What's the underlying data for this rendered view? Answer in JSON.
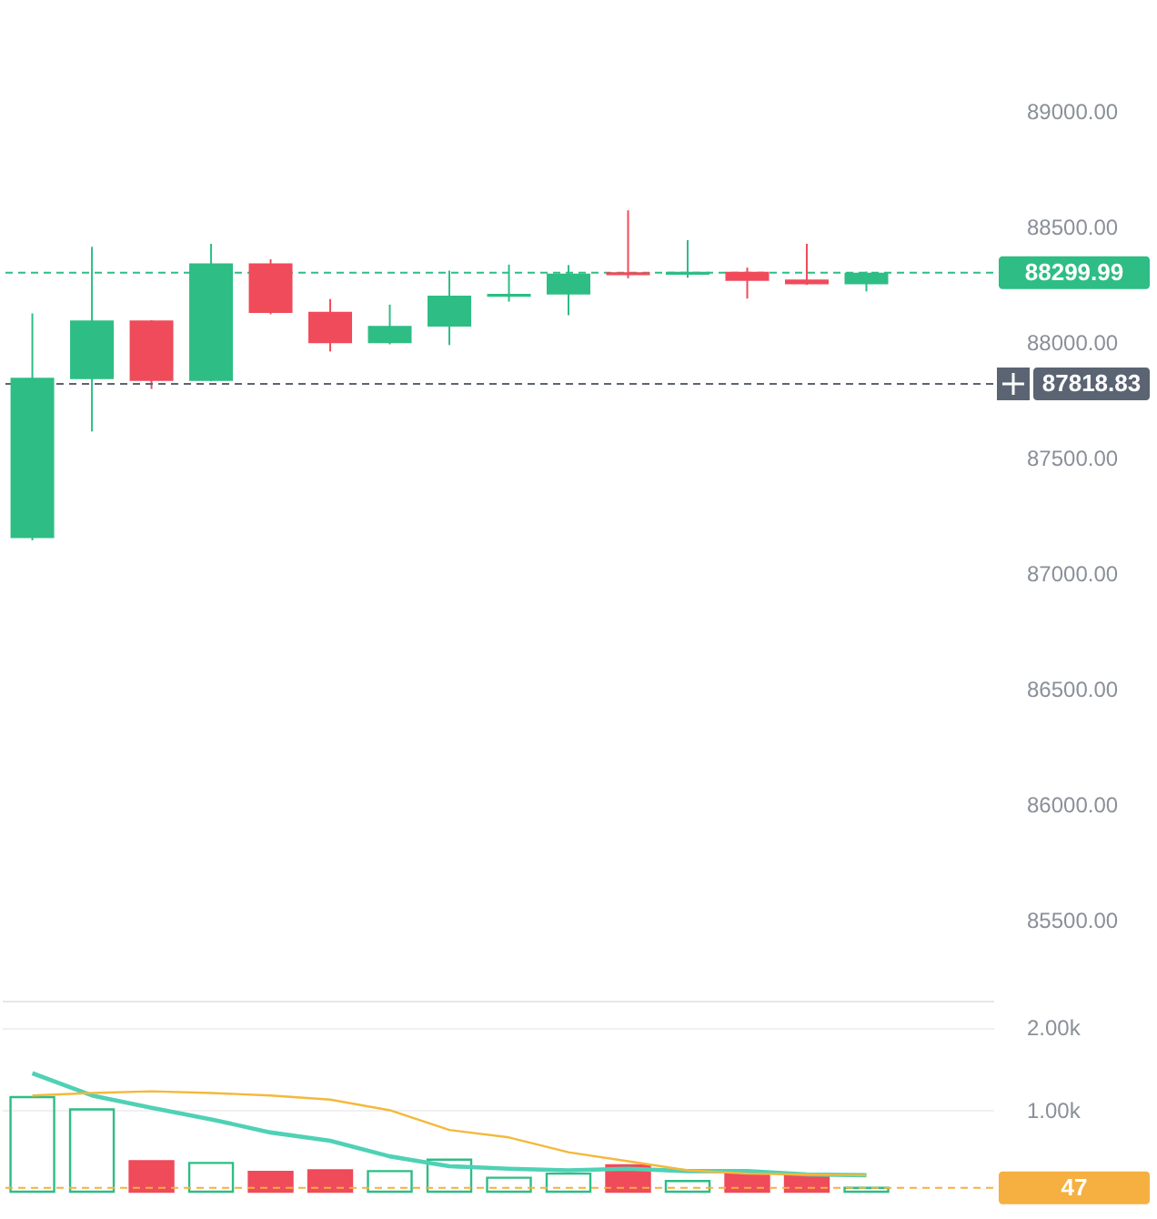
{
  "chart_data": [
    {
      "type": "candlestick",
      "categories": [
        null,
        null,
        null,
        null,
        null,
        null,
        null,
        null,
        null,
        null,
        null,
        null,
        null,
        null,
        null
      ],
      "ohlc": [
        [
          87152,
          88124,
          87142,
          87845
        ],
        [
          87840,
          88412,
          87613,
          88093
        ],
        [
          88093,
          88095,
          87797,
          87832
        ],
        [
          87832,
          88425,
          87830,
          88340
        ],
        [
          88340,
          88358,
          88120,
          88126
        ],
        [
          88131,
          88186,
          87959,
          87995
        ],
        [
          87995,
          88162,
          87990,
          88070
        ],
        [
          88067,
          88309,
          87987,
          88201
        ],
        [
          88196,
          88335,
          88175,
          88209
        ],
        [
          88206,
          88333,
          88116,
          88296
        ],
        [
          88302,
          88570,
          88276,
          88289
        ],
        [
          88291,
          88441,
          88278,
          88304
        ],
        [
          88304,
          88322,
          88188,
          88265
        ],
        [
          88271,
          88425,
          88248,
          88250
        ],
        [
          88250,
          88305,
          88219,
          88300
        ]
      ],
      "colors": [
        "#2ebd85",
        "#2ebd85",
        "#ef4b5a",
        "#2ebd85",
        "#ef4b5a",
        "#ef4b5a",
        "#2ebd85",
        "#2ebd85",
        "#2ebd85",
        "#2ebd85",
        "#ef4b5a",
        "#2ebd85",
        "#ef4b5a",
        "#ef4b5a",
        "#2ebd85"
      ],
      "ylim": [
        85150,
        89480
      ],
      "yticks": [
        {
          "value": 85500,
          "label": "85500.00"
        },
        {
          "value": 86000,
          "label": "86000.00"
        },
        {
          "value": 86500,
          "label": "86500.00"
        },
        {
          "value": 87000,
          "label": "87000.00"
        },
        {
          "value": 87500,
          "label": "87500.00"
        },
        {
          "value": 88000,
          "label": "88000.00"
        },
        {
          "value": 88500,
          "label": "88500.00"
        },
        {
          "value": 89000,
          "label": "89000.00"
        }
      ],
      "ref_lines": [
        {
          "axis": "y",
          "value": 88299.99,
          "label": "88299.99",
          "color": "#2ebd85",
          "line_style": "dashed"
        },
        {
          "axis": "y",
          "value": 87818.83,
          "label": "87818.83",
          "color": "#5b6472",
          "line_style": "dashed"
        }
      ],
      "tick_labels": "y"
    },
    {
      "type": "bar",
      "categories": [
        null,
        null,
        null,
        null,
        null,
        null,
        null,
        null,
        null,
        null,
        null,
        null,
        null,
        null,
        null
      ],
      "series": [
        {
          "type": "bar",
          "colors": [
            "#2ebd85",
            "#2ebd85",
            "#ef4b5a",
            "#2ebd85",
            "#ef4b5a",
            "#ef4b5a",
            "#2ebd85",
            "#2ebd85",
            "#2ebd85",
            "#2ebd85",
            "#ef4b5a",
            "#2ebd85",
            "#ef4b5a",
            "#ef4b5a",
            "#2ebd85"
          ],
          "values": [
            1150,
            1000,
            370,
            350,
            240,
            260,
            250,
            390,
            170,
            220,
            320,
            130,
            210,
            210,
            47
          ]
        },
        {
          "type": "line",
          "color": "#4fd1b5",
          "values": [
            1440,
            1170,
            1020,
            880,
            720,
            620,
            430,
            310,
            280,
            260,
            280,
            250,
            250,
            210,
            200
          ]
        },
        {
          "type": "line",
          "color": "#f5b83a",
          "values": [
            1170,
            1200,
            1220,
            1200,
            1170,
            1120,
            990,
            750,
            660,
            480,
            370,
            260,
            220,
            210,
            200
          ]
        }
      ],
      "ylim": [
        0,
        2300
      ],
      "yticks": [
        {
          "value": 1000,
          "label": "1.00k"
        },
        {
          "value": 2000,
          "label": "2.00k"
        }
      ],
      "grid": "y",
      "ref_lines": [
        {
          "axis": "y",
          "value": 47,
          "label": "47",
          "color": "#f5b041",
          "line_style": "dashed"
        }
      ],
      "tick_labels": "y"
    }
  ]
}
